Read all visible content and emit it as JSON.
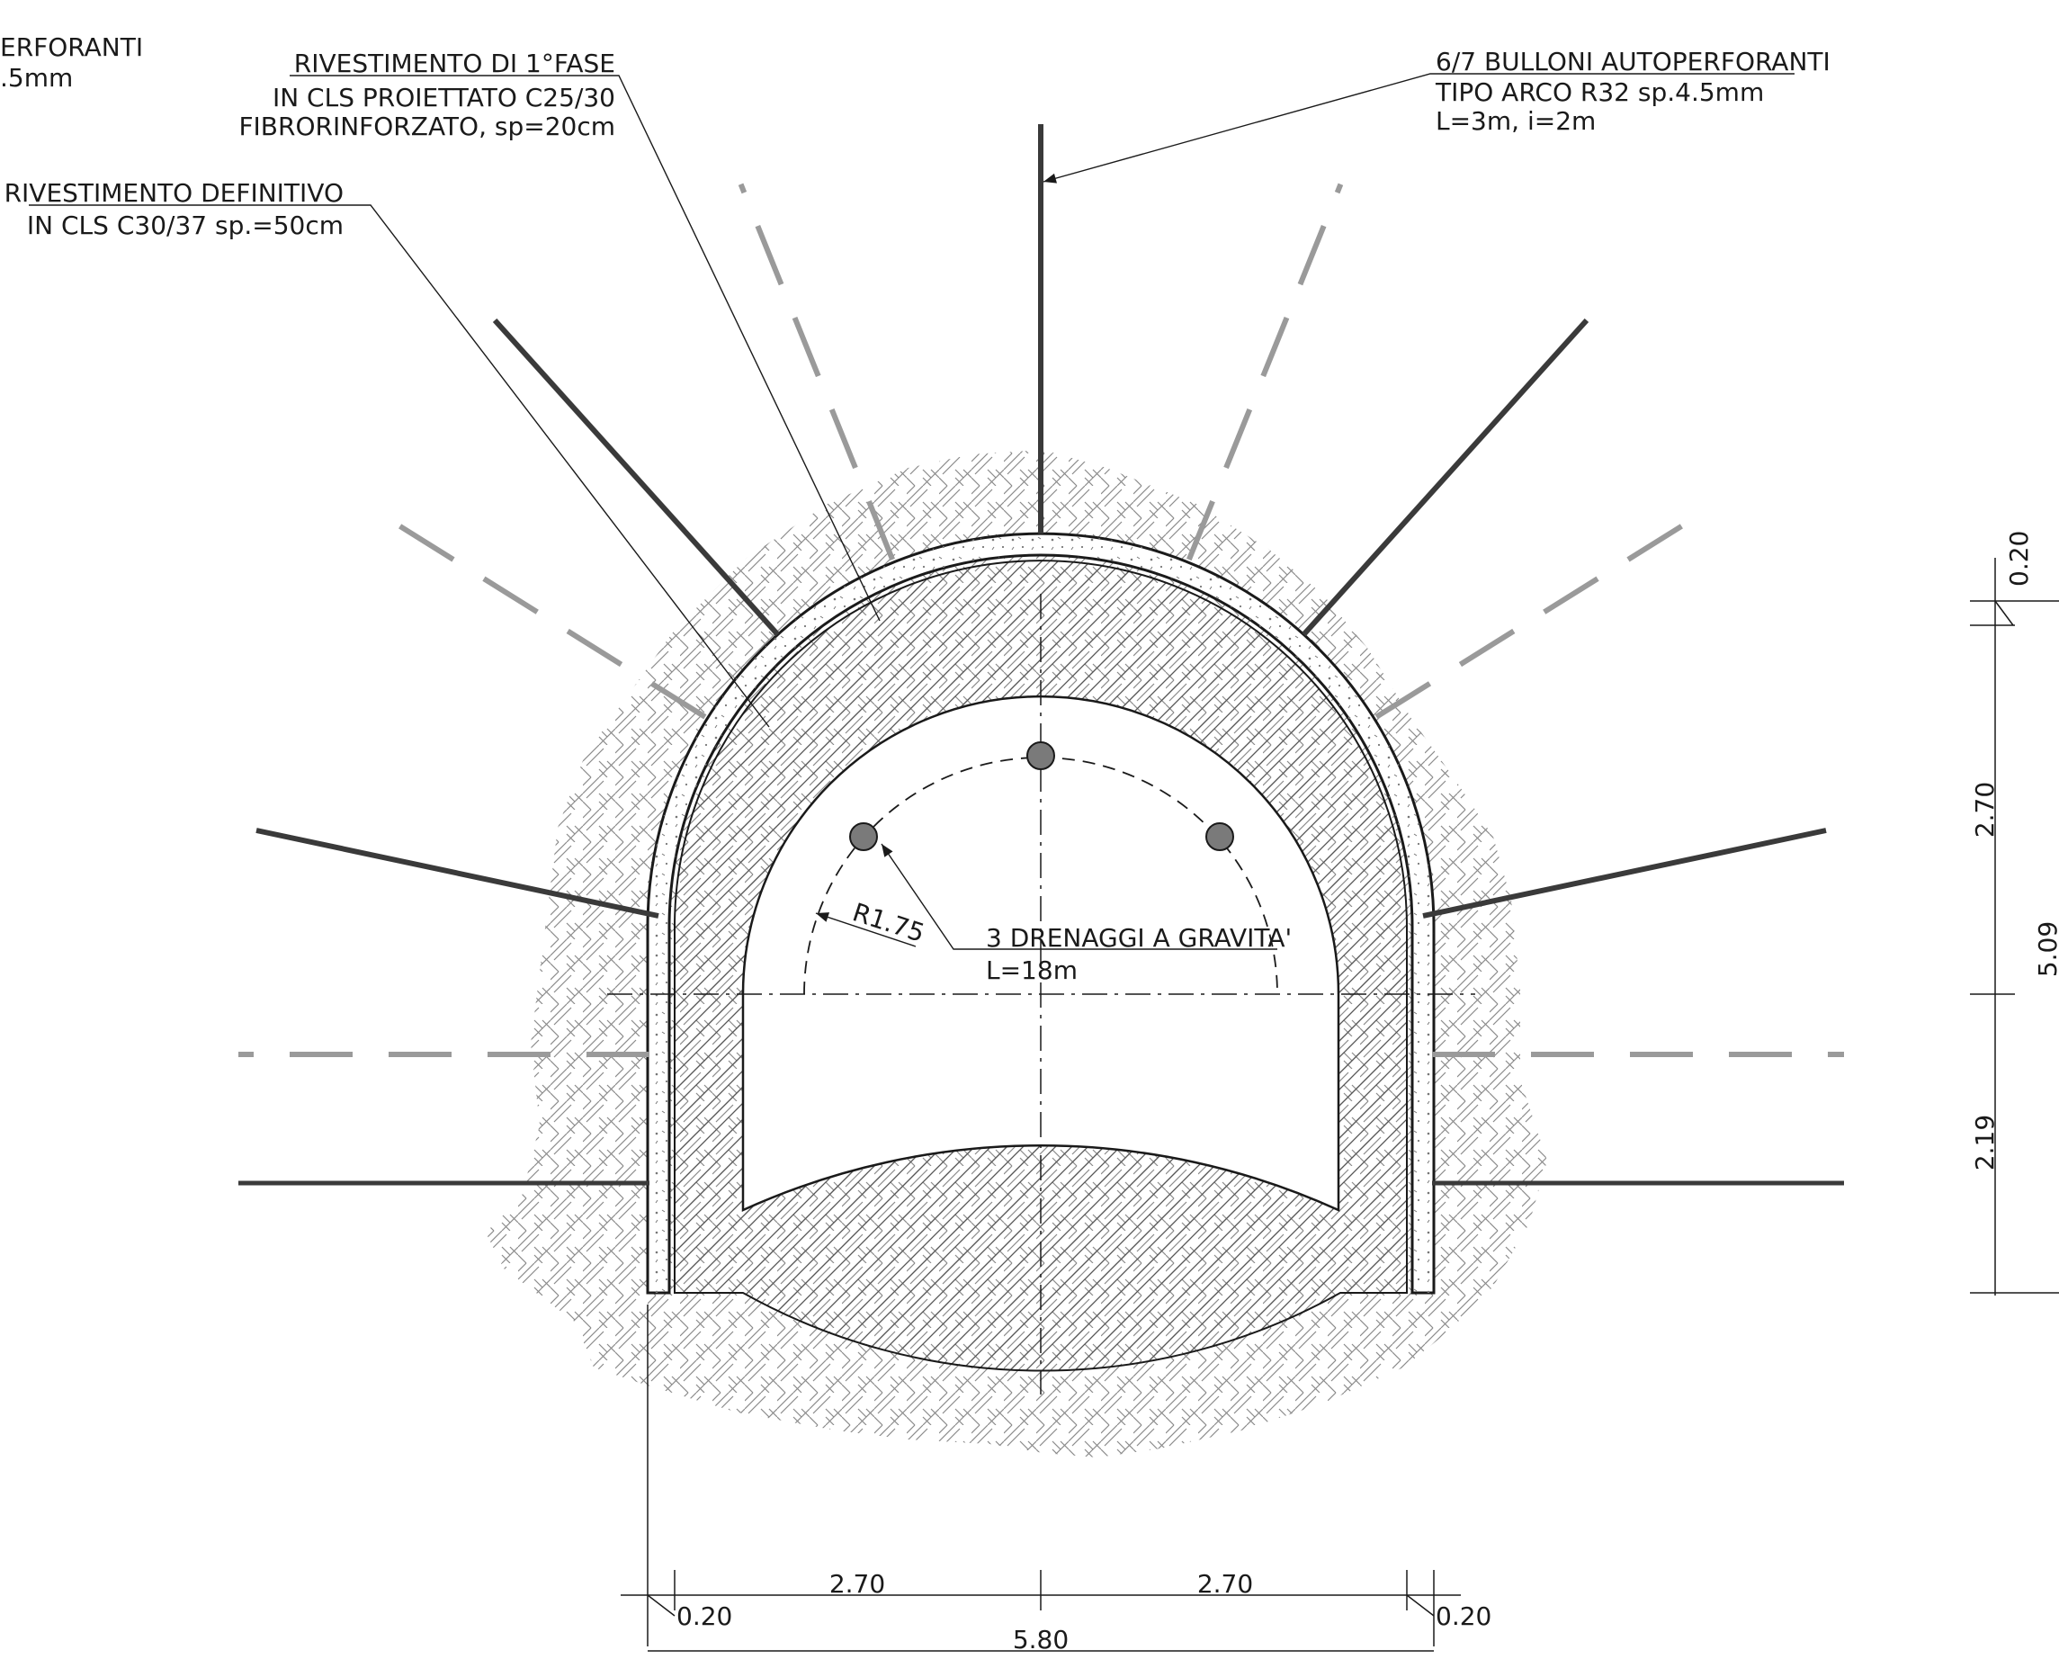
{
  "labels": {
    "top_left_cut_l1": "ERFORANTI",
    "top_left_cut_l2": ".5mm",
    "first_phase_l1": "RIVESTIMENTO DI 1°FASE",
    "first_phase_l2": "IN CLS PROIETTATO C25/30",
    "first_phase_l3": "FIBRORINFORZATO, sp=20cm",
    "definitive_l1": "RIVESTIMENTO DEFINITIVO",
    "definitive_l2": "IN CLS C30/37 sp.=50cm",
    "bolts_l1": "6/7 BULLONI AUTOPERFORANTI",
    "bolts_l2": "TIPO ARCO R32 sp.4.5mm",
    "bolts_l3": "L=3m, i=2m",
    "drains_l1": "3 DRENAGGI A GRAVITA'",
    "drains_l2": "L=18m",
    "radius": "R1.75"
  },
  "dimensions": {
    "bottom_left_wall": "0.20",
    "bottom_left_half": "2.70",
    "bottom_right_half": "2.70",
    "bottom_right_wall": "0.20",
    "bottom_total": "5.80",
    "right_top_wall": "0.20",
    "right_arch": "2.70",
    "right_lower": "2.19",
    "right_total": "5.09"
  },
  "colors": {
    "line": "#1a1a1a",
    "bolt_active": "#3a3a3a",
    "bolt_faded": "#9a9a9a",
    "drain_fill": "#7a7a7a"
  }
}
